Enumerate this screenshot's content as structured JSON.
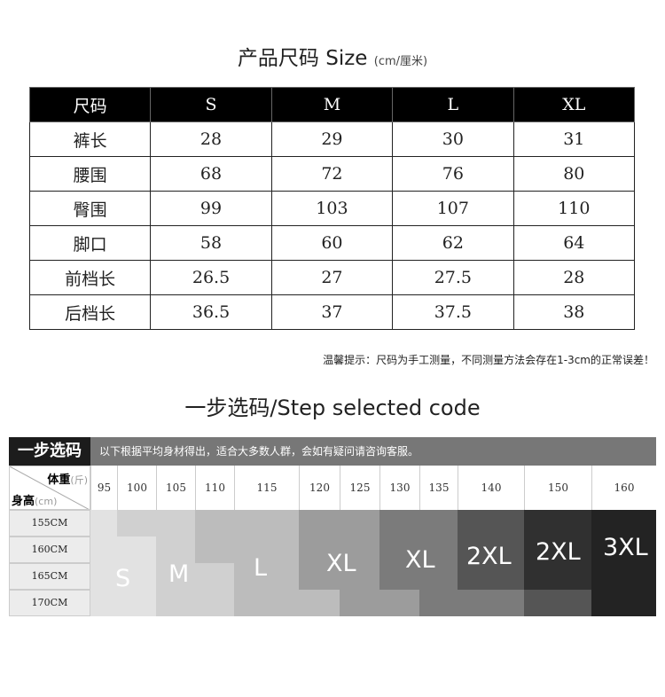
{
  "title": {
    "main": "产品尺码 Size",
    "unit": "(cm/厘米)"
  },
  "size_table": {
    "header": [
      "尺码",
      "S",
      "M",
      "L",
      "XL"
    ],
    "rows": [
      [
        "裤长",
        "28",
        "29",
        "30",
        "31"
      ],
      [
        "腰围",
        "68",
        "72",
        "76",
        "80"
      ],
      [
        "臀围",
        "99",
        "103",
        "107",
        "110"
      ],
      [
        "脚口",
        "58",
        "60",
        "62",
        "64"
      ],
      [
        "前档长",
        "26.5",
        "27",
        "27.5",
        "28"
      ],
      [
        "后档长",
        "36.5",
        "37",
        "37.5",
        "38"
      ]
    ]
  },
  "note": "温馨提示：尺码为手工测量，不同测量方法会存在1-3cm的正常误差！",
  "step_title": "一步选码/Step selected code",
  "guide": {
    "label": "一步选码",
    "description": "以下根据平均身材得出，适合大多数人群，会如有疑问请咨询客服。",
    "weight_label": "体重",
    "weight_unit": "(斤)",
    "height_label": "身高",
    "height_unit": "(cm)",
    "weights": [
      "95",
      "100",
      "105",
      "110",
      "115",
      "120",
      "125",
      "130",
      "135",
      "140",
      "150",
      "160"
    ],
    "heights": [
      "155CM",
      "160CM",
      "165CM",
      "170CM"
    ],
    "grid": [
      [
        "S",
        "M",
        "M",
        "L",
        "L",
        "XL",
        "XL",
        "XL2",
        "XL2",
        "2XL",
        "2XL2",
        "3XL"
      ],
      [
        "S",
        "S",
        "M",
        "L",
        "L",
        "XL",
        "XL",
        "XL2",
        "XL2",
        "2XL",
        "2XL2",
        "3XL"
      ],
      [
        "S",
        "S",
        "M",
        "M",
        "L",
        "XL",
        "XL",
        "XL2",
        "XL2",
        "2XL",
        "2XL2",
        "3XL"
      ],
      [
        "S",
        "S",
        "M",
        "M",
        "L",
        "L",
        "XL",
        "XL",
        "XL2",
        "XL2",
        "2XL",
        "3XL"
      ]
    ],
    "colors": {
      "S": "#e2e2e2",
      "M": "#d0d0d0",
      "L": "#bcbcbc",
      "XL": "#9c9c9c",
      "XL2": "#7b7b7b",
      "2XL": "#555555",
      "2XL2": "#303030",
      "3XL": "#232323"
    },
    "size_labels": [
      "S",
      "M",
      "L",
      "XL",
      "XL",
      "2XL",
      "2XL",
      "3XL"
    ]
  }
}
